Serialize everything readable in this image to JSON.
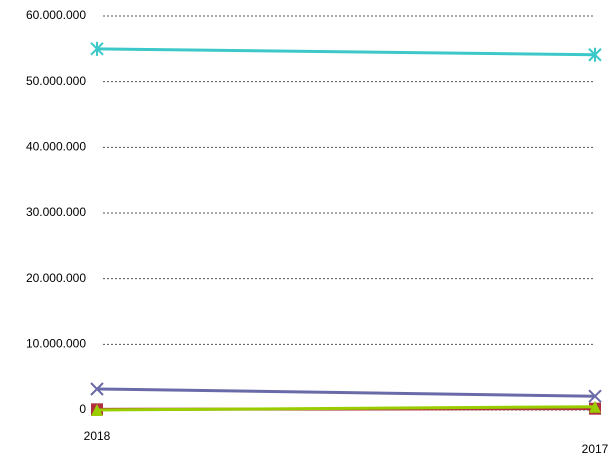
{
  "chart_data": {
    "type": "line",
    "categories": [
      "2018",
      "2017"
    ],
    "series": [
      {
        "color": "#3cc8c8",
        "marker": "asterisk",
        "values": [
          55000000,
          54100000
        ]
      },
      {
        "color": "#6a6aa8",
        "marker": "x",
        "values": [
          3200000,
          2100000
        ]
      },
      {
        "color": "#b03040",
        "marker": "square",
        "values": [
          100000,
          200000
        ]
      },
      {
        "color": "#9acd00",
        "marker": "triangle",
        "values": [
          0,
          500000
        ]
      }
    ],
    "ylim": [
      0,
      60000000
    ],
    "yticks": [
      0,
      {
        "value": 10000000,
        "label": "10.000.000"
      },
      {
        "value": 20000000,
        "label": "20.000.000"
      },
      {
        "value": 30000000,
        "label": "30.000.000"
      },
      {
        "value": 40000000,
        "label": "40.000.000"
      },
      {
        "value": 50000000,
        "label": "50.000.000"
      },
      {
        "value": 60000000,
        "label": "60.000.000"
      }
    ],
    "grid": true
  }
}
